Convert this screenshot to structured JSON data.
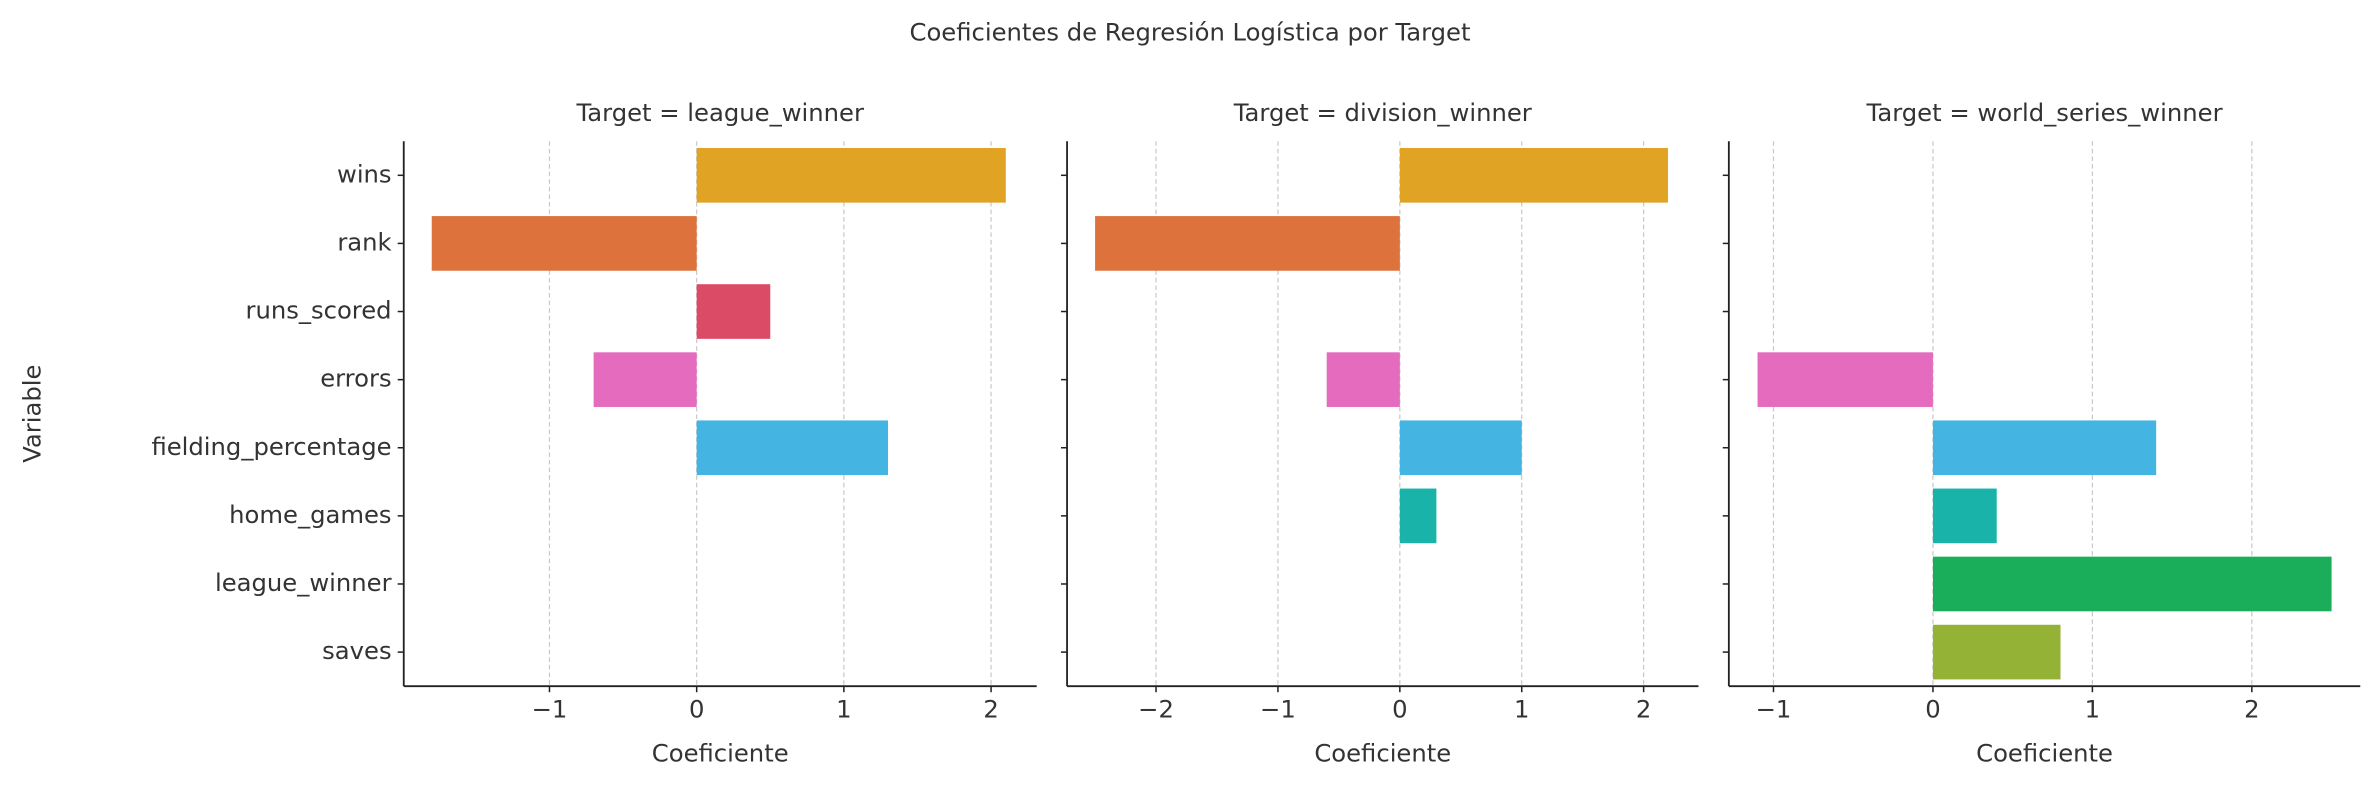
{
  "suptitle": "Coeficientes de Regresión Logística por Target",
  "chart_data": [
    {
      "type": "barh",
      "title": "Target = league_winner",
      "xlabel": "Coeficiente",
      "ylabel": "Variable",
      "categories": [
        "wins",
        "rank",
        "runs_scored",
        "errors",
        "fielding_percentage",
        "home_games",
        "league_winner",
        "saves"
      ],
      "values": [
        2.1,
        -1.8,
        0.5,
        -0.7,
        1.3,
        null,
        null,
        null
      ],
      "colors": [
        "#e0a323",
        "#dd723c",
        "#dc4b66",
        "#e46bbd",
        "#44b4e2",
        "#1ab3a9",
        "#1aad5a",
        "#93b236"
      ],
      "xlim": [
        -1.99,
        2.31
      ],
      "xticks": [
        {
          "value": -1,
          "label": "−1"
        },
        0,
        1,
        2
      ],
      "grid": true
    },
    {
      "type": "barh",
      "title": "Target = division_winner",
      "xlabel": "Coeficiente",
      "categories": [
        "wins",
        "rank",
        "runs_scored",
        "errors",
        "fielding_percentage",
        "home_games",
        "league_winner",
        "saves"
      ],
      "values": [
        2.2,
        -2.5,
        null,
        -0.6,
        1.0,
        0.3,
        null,
        null
      ],
      "colors": [
        "#e0a323",
        "#dd723c",
        "#dc4b66",
        "#e46bbd",
        "#44b4e2",
        "#1ab3a9",
        "#1aad5a",
        "#93b236"
      ],
      "xlim": [
        -2.73,
        2.45
      ],
      "xticks": [
        {
          "value": -2,
          "label": "−2"
        },
        {
          "value": -1,
          "label": "−1"
        },
        0,
        1,
        2
      ],
      "grid": true
    },
    {
      "type": "barh",
      "title": "Target = world_series_winner",
      "xlabel": "Coeficiente",
      "categories": [
        "wins",
        "rank",
        "runs_scored",
        "errors",
        "fielding_percentage",
        "home_games",
        "league_winner",
        "saves"
      ],
      "values": [
        null,
        null,
        null,
        -1.1,
        1.4,
        0.4,
        2.5,
        0.8
      ],
      "colors": [
        "#e0a323",
        "#dd723c",
        "#dc4b66",
        "#e46bbd",
        "#44b4e2",
        "#1ab3a9",
        "#1aad5a",
        "#93b236"
      ],
      "xlim": [
        -1.28,
        2.68
      ],
      "xticks": [
        {
          "value": -1,
          "label": "−1"
        },
        0,
        1,
        2
      ],
      "grid": true
    }
  ]
}
